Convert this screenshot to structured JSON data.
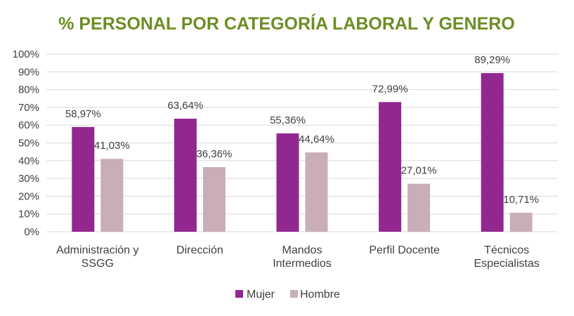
{
  "chart_data": {
    "type": "bar",
    "title": "% PERSONAL POR CATEGORÍA LABORAL Y GENERO",
    "categories": [
      [
        "Administración y",
        "SSGG"
      ],
      [
        "Dirección"
      ],
      [
        "Mandos",
        "Intermedios"
      ],
      [
        "Perfil Docente"
      ],
      [
        "Técnicos",
        "Especialistas"
      ]
    ],
    "series": [
      {
        "name": "Mujer",
        "color": "#92278F",
        "values": [
          58.97,
          63.64,
          55.36,
          72.99,
          89.29
        ],
        "labels": [
          "58,97%",
          "63,64%",
          "55,36%",
          "72,99%",
          "89,29%"
        ]
      },
      {
        "name": "Hombre",
        "color": "#C9AEB9",
        "values": [
          41.03,
          36.36,
          44.64,
          27.01,
          10.71
        ],
        "labels": [
          "41,03%",
          "36,36%",
          "44,64%",
          "27,01%",
          "10,71%"
        ]
      }
    ],
    "yticks": [
      "0%",
      "10%",
      "20%",
      "30%",
      "40%",
      "50%",
      "60%",
      "70%",
      "80%",
      "90%",
      "100%"
    ],
    "ylim": [
      0,
      100
    ],
    "xlabel": "",
    "ylabel": "",
    "grid": true,
    "legend": "bottom-center",
    "title_color": "#6B8E23"
  }
}
